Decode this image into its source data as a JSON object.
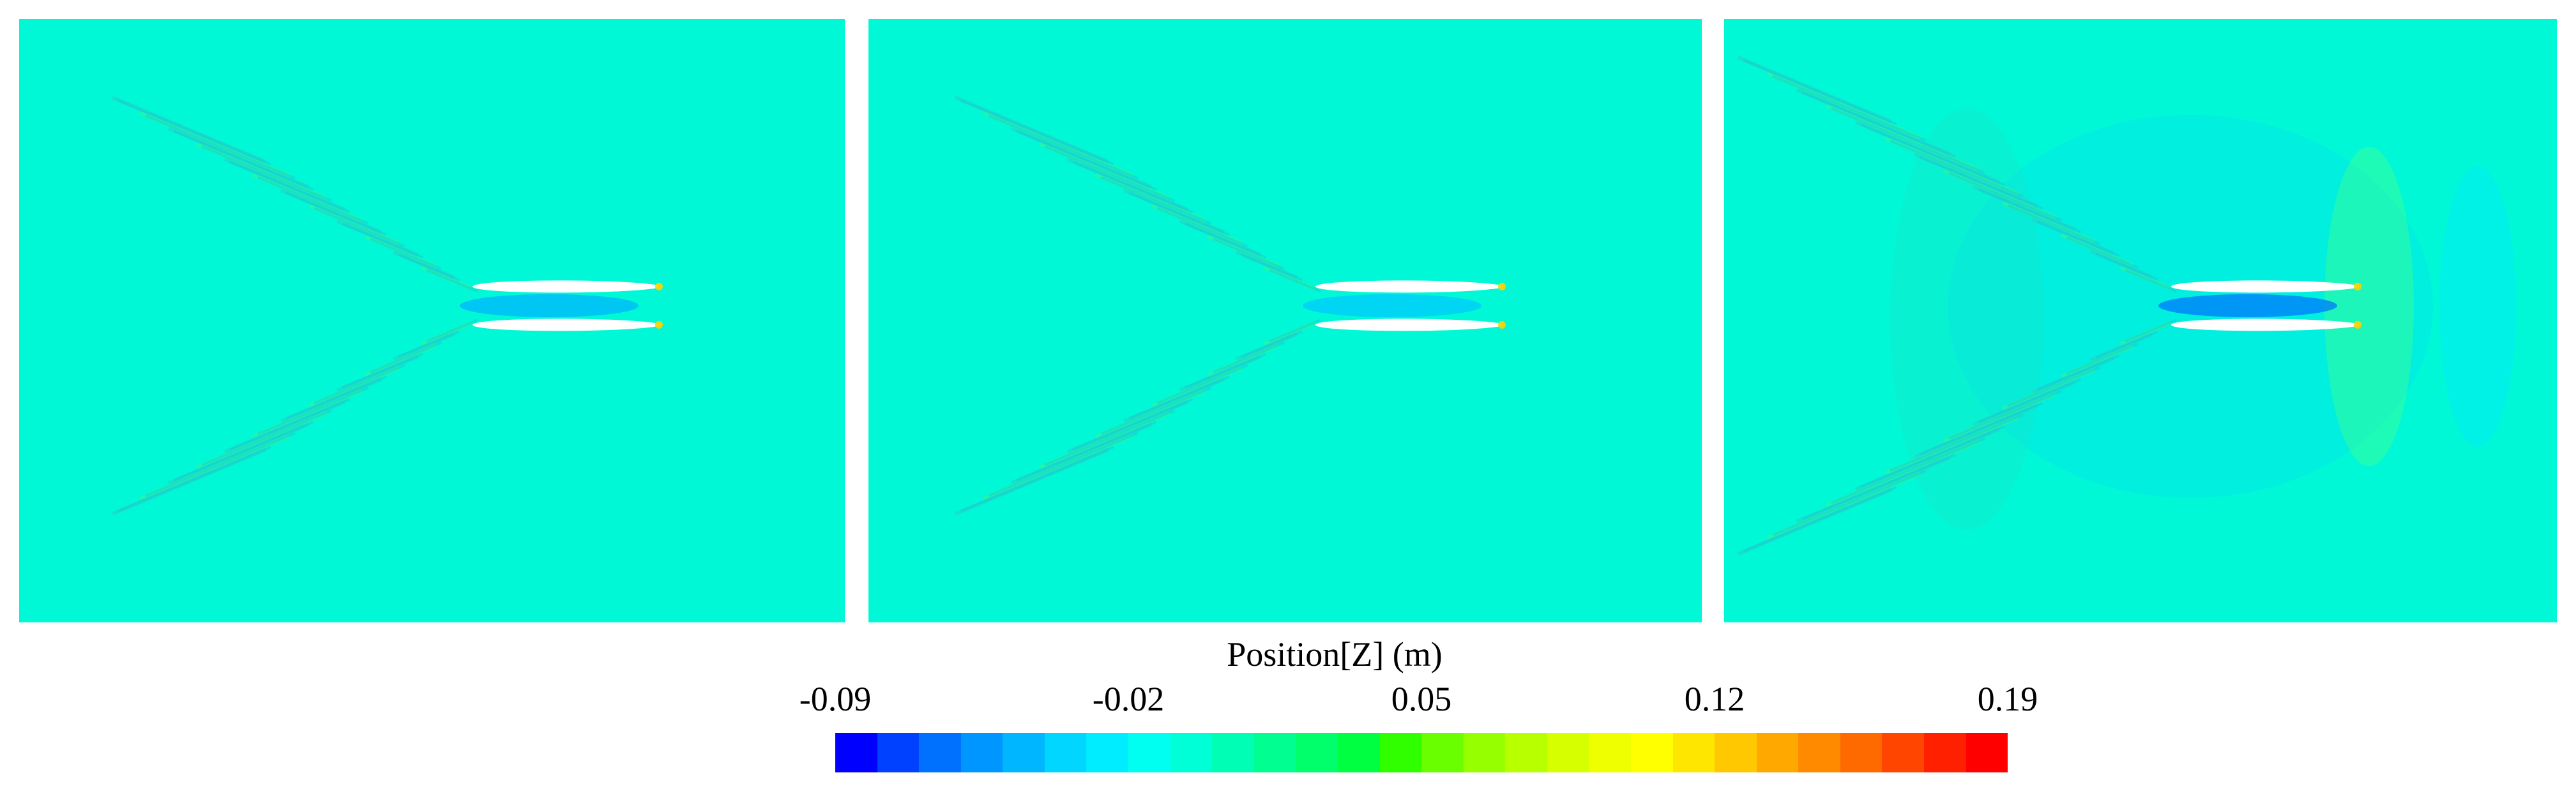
{
  "panels": [
    {
      "id": "panel-1",
      "field": "wave-elevation-contour",
      "hulls": 2
    },
    {
      "id": "panel-2",
      "field": "wave-elevation-contour",
      "hulls": 2
    },
    {
      "id": "panel-3",
      "field": "wave-elevation-contour",
      "hulls": 2
    }
  ],
  "colorbar": {
    "title": "Position[Z] (m)",
    "ticks": [
      "-0.09",
      "-0.02",
      "0.05",
      "0.12",
      "0.19"
    ],
    "range": [
      -0.09,
      0.19
    ],
    "colors": [
      "#0000ff",
      "#0040ff",
      "#0070ff",
      "#0096ff",
      "#00b7ff",
      "#00d6ff",
      "#00ecff",
      "#00fff0",
      "#00ffd6",
      "#00ffb5",
      "#00ff90",
      "#00ff6a",
      "#00ff40",
      "#30ff00",
      "#6aff00",
      "#96ff00",
      "#b8ff00",
      "#d6ff00",
      "#f0ff00",
      "#ffff00",
      "#ffe600",
      "#ffc800",
      "#ffa800",
      "#ff8a00",
      "#ff6a00",
      "#ff4500",
      "#ff2000",
      "#ff0000"
    ]
  }
}
